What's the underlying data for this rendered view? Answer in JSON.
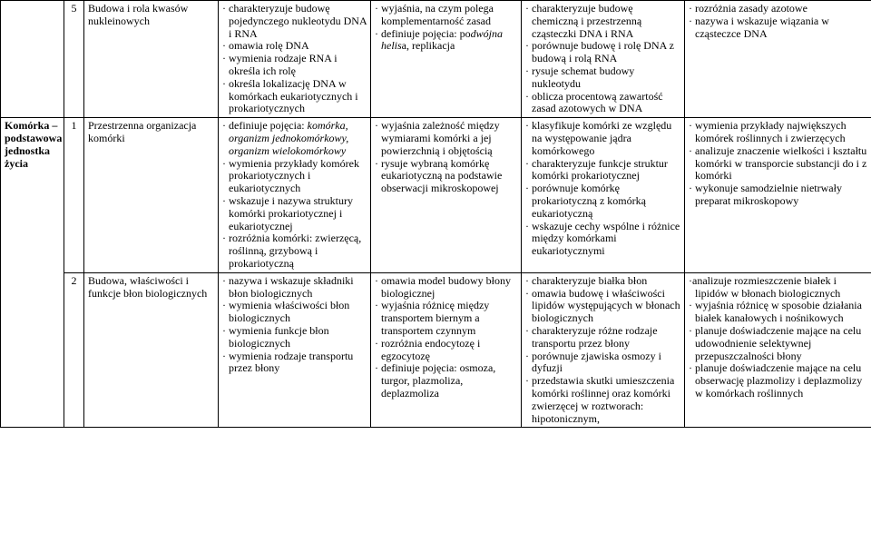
{
  "rowHeader": "Komórka – podstawowa jednostka życia",
  "rows": [
    {
      "num": "5",
      "topic": "Budowa i rola kwasów nukleinowych",
      "c1": [
        {
          "t": "· charakteryzuje budowę pojedynczego nukleotydu DNA i RNA"
        },
        {
          "t": "· omawia rolę DNA"
        },
        {
          "t": "· wymienia rodzaje RNA i określa ich rolę"
        },
        {
          "t": "· określa lokalizację DNA w komórkach eukariotycznych i prokariotycznych"
        }
      ],
      "c2": [
        {
          "t": "· wyjaśnia, na czym polega komplementarność zasad"
        },
        {
          "t": "· definiuje pojęcia: po",
          "it": "dwójna helis",
          "after": "a, replikacja"
        }
      ],
      "c3": [
        {
          "t": "· charakteryzuje budowę chemiczną i przestrzenną cząsteczki DNA i RNA"
        },
        {
          "t": "· porównuje budowę i rolę DNA z budową i rolą RNA"
        },
        {
          "t": "· rysuje schemat budowy nukleotydu"
        },
        {
          "t": "· oblicza procentową zawartość zasad azotowych w DNA"
        }
      ],
      "c4": [
        {
          "t": "· rozróżnia zasady azotowe"
        },
        {
          "t": "· nazywa i wskazuje wiązania w cząsteczce DNA"
        }
      ]
    },
    {
      "num": "1",
      "topic": "Przestrzenna organizacja komórki",
      "c1": [
        {
          "t": "· definiuje pojęcia: ",
          "it": "komórka, organizm jednokomórkowy, organizm wielokomórkowy"
        },
        {
          "t": "· wymienia przykłady komórek prokariotycznych i eukariotycznych"
        },
        {
          "t": "· wskazuje i nazywa struktury komórki prokariotycznej i eukariotycznej"
        },
        {
          "t": "· rozróżnia komórki: zwierzęcą, roślinną, grzybową i prokariotyczną"
        }
      ],
      "c2": [
        {
          "t": "· wyjaśnia zależność między wymiarami komórki a jej powierzchnią i objętością"
        },
        {
          "t": "· rysuje wybraną komórkę eukariotyczną na podstawie obserwacji mikroskopowej"
        }
      ],
      "c3": [
        {
          "t": "· klasyfikuje komórki ze względu na występowanie jądra komórkowego"
        },
        {
          "t": "· charakteryzuje funkcje struktur komórki prokariotycznej"
        },
        {
          "t": "· porównuje komórkę prokariotyczną z komórką eukariotyczną"
        },
        {
          "t": "· wskazuje cechy wspólne i różnice między komórkami eukariotycznymi"
        }
      ],
      "c4": [
        {
          "t": "· wymienia przykłady największych komórek roślinnych i zwierzęcych"
        },
        {
          "t": "· analizuje znaczenie wielkości i kształtu komórki w transporcie substancji do i z komórki"
        },
        {
          "t": "· wykonuje samodzielnie nietrwały preparat mikroskopowy"
        }
      ]
    },
    {
      "num": "2",
      "topic": "Budowa, właściwości i funkcje błon biologicznych",
      "c1": [
        {
          "t": "· nazywa i wskazuje składniki błon biologicznych"
        },
        {
          "t": "· wymienia właściwości błon biologicznych"
        },
        {
          "t": "· wymienia funkcje błon biologicznych"
        },
        {
          "t": "· wymienia rodzaje transportu przez błony"
        }
      ],
      "c2": [
        {
          "t": "· omawia model budowy błony biologicznej"
        },
        {
          "t": "· wyjaśnia różnicę między transportem biernym a transportem czynnym"
        },
        {
          "t": "· rozróżnia endocytozę i egzocytozę"
        },
        {
          "t": "· definiuje pojęcia: osmoza, turgor, plazmoliza, deplazmoliza"
        }
      ],
      "c3": [
        {
          "t": "· charakteryzuje białka błon"
        },
        {
          "t": "· omawia budowę i właściwości lipidów występujących w błonach biologicznych"
        },
        {
          "t": "· charakteryzuje różne rodzaje transportu przez błony"
        },
        {
          "t": "· porównuje zjawiska osmozy i dyfuzji"
        },
        {
          "t": "· przedstawia skutki umieszczenia komórki roślinnej oraz komórki zwierzęcej w roztworach: hipotonicznym,"
        }
      ],
      "c4": [
        {
          "t": "·analizuje rozmieszczenie białek i lipidów w błonach biologicznych"
        },
        {
          "t": "· wyjaśnia różnicę w sposobie działania białek kanałowych i nośnikowych"
        },
        {
          "t": "· planuje doświadczenie mające na celu udowodnienie selektywnej przepuszczalności błony"
        },
        {
          "t": "· planuje doświadczenie mające na celu obserwację plazmolizy i deplazmolizy w komórkach roślinnych"
        }
      ]
    }
  ]
}
